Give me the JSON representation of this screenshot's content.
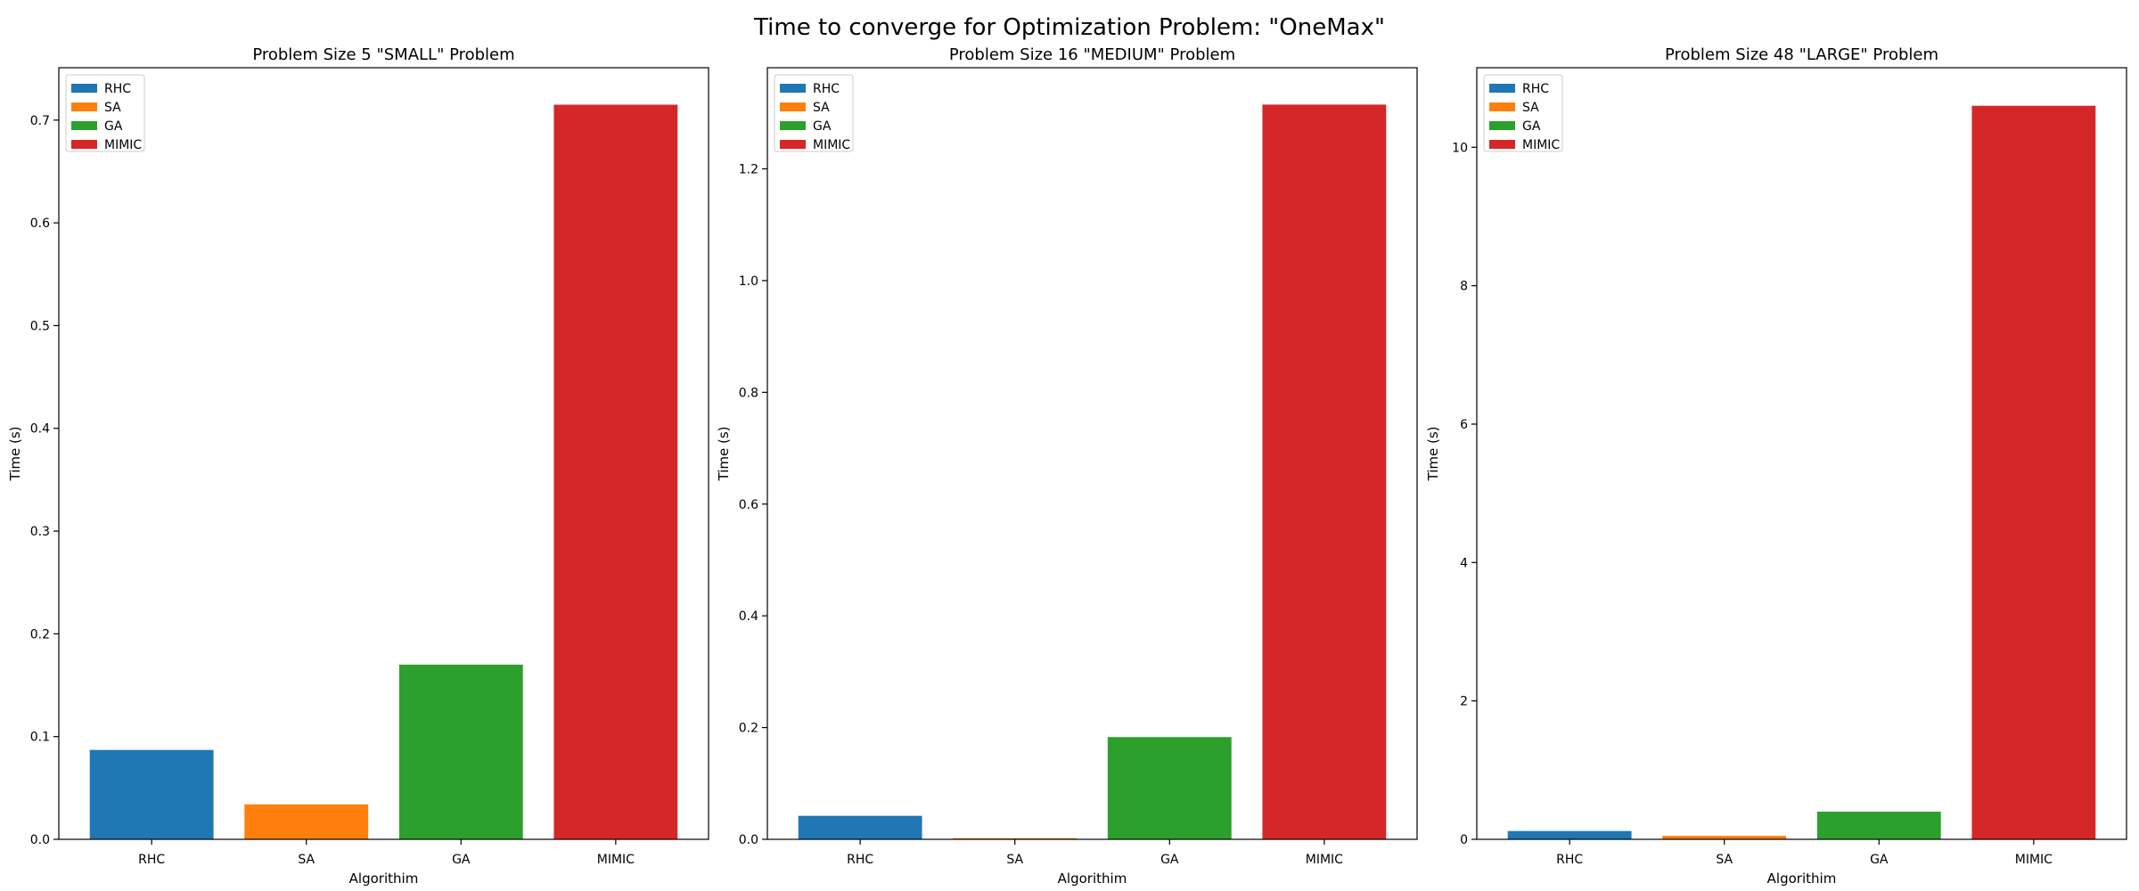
{
  "figure": {
    "title": "Time to converge for Optimization Problem: \"OneMax\""
  },
  "chart_data": [
    {
      "type": "bar",
      "title": "Problem Size 5 \"SMALL\" Problem",
      "xlabel": "Algorithim",
      "ylabel": "Time (s)",
      "categories": [
        "RHC",
        "SA",
        "GA",
        "MIMIC"
      ],
      "values": [
        0.087,
        0.034,
        0.17,
        0.715
      ],
      "colors": [
        "#1f77b4",
        "#ff7f0e",
        "#2ca02c",
        "#d62728"
      ],
      "ylim": [
        0,
        0.751
      ],
      "yticks": [
        0.0,
        0.1,
        0.2,
        0.3,
        0.4,
        0.5,
        0.6,
        0.7
      ],
      "ytick_labels": [
        "0.0",
        "0.1",
        "0.2",
        "0.3",
        "0.4",
        "0.5",
        "0.6",
        "0.7"
      ],
      "legend": [
        "RHC",
        "SA",
        "GA",
        "MIMIC"
      ],
      "legend_loc": "upper-left",
      "grid": false
    },
    {
      "type": "bar",
      "title": "Problem Size 16 \"MEDIUM\" Problem",
      "xlabel": "Algorithim",
      "ylabel": "Time (s)",
      "categories": [
        "RHC",
        "SA",
        "GA",
        "MIMIC"
      ],
      "values": [
        0.042,
        0.002,
        0.183,
        1.315
      ],
      "colors": [
        "#1f77b4",
        "#ff7f0e",
        "#2ca02c",
        "#d62728"
      ],
      "ylim": [
        0,
        1.381
      ],
      "yticks": [
        0.0,
        0.2,
        0.4,
        0.6,
        0.8,
        1.0,
        1.2
      ],
      "ytick_labels": [
        "0.0",
        "0.2",
        "0.4",
        "0.6",
        "0.8",
        "1.0",
        "1.2"
      ],
      "legend": [
        "RHC",
        "SA",
        "GA",
        "MIMIC"
      ],
      "legend_loc": "upper-left",
      "grid": false
    },
    {
      "type": "bar",
      "title": "Problem Size 48 \"LARGE\" Problem",
      "xlabel": "Algorithim",
      "ylabel": "Time (s)",
      "categories": [
        "RHC",
        "SA",
        "GA",
        "MIMIC"
      ],
      "values": [
        0.12,
        0.05,
        0.4,
        10.6
      ],
      "colors": [
        "#1f77b4",
        "#ff7f0e",
        "#2ca02c",
        "#d62728"
      ],
      "ylim": [
        0,
        11.15
      ],
      "yticks": [
        0,
        2,
        4,
        6,
        8,
        10
      ],
      "ytick_labels": [
        "0",
        "2",
        "4",
        "6",
        "8",
        "10"
      ],
      "legend": [
        "RHC",
        "SA",
        "GA",
        "MIMIC"
      ],
      "legend_loc": "upper-left",
      "grid": false
    }
  ]
}
